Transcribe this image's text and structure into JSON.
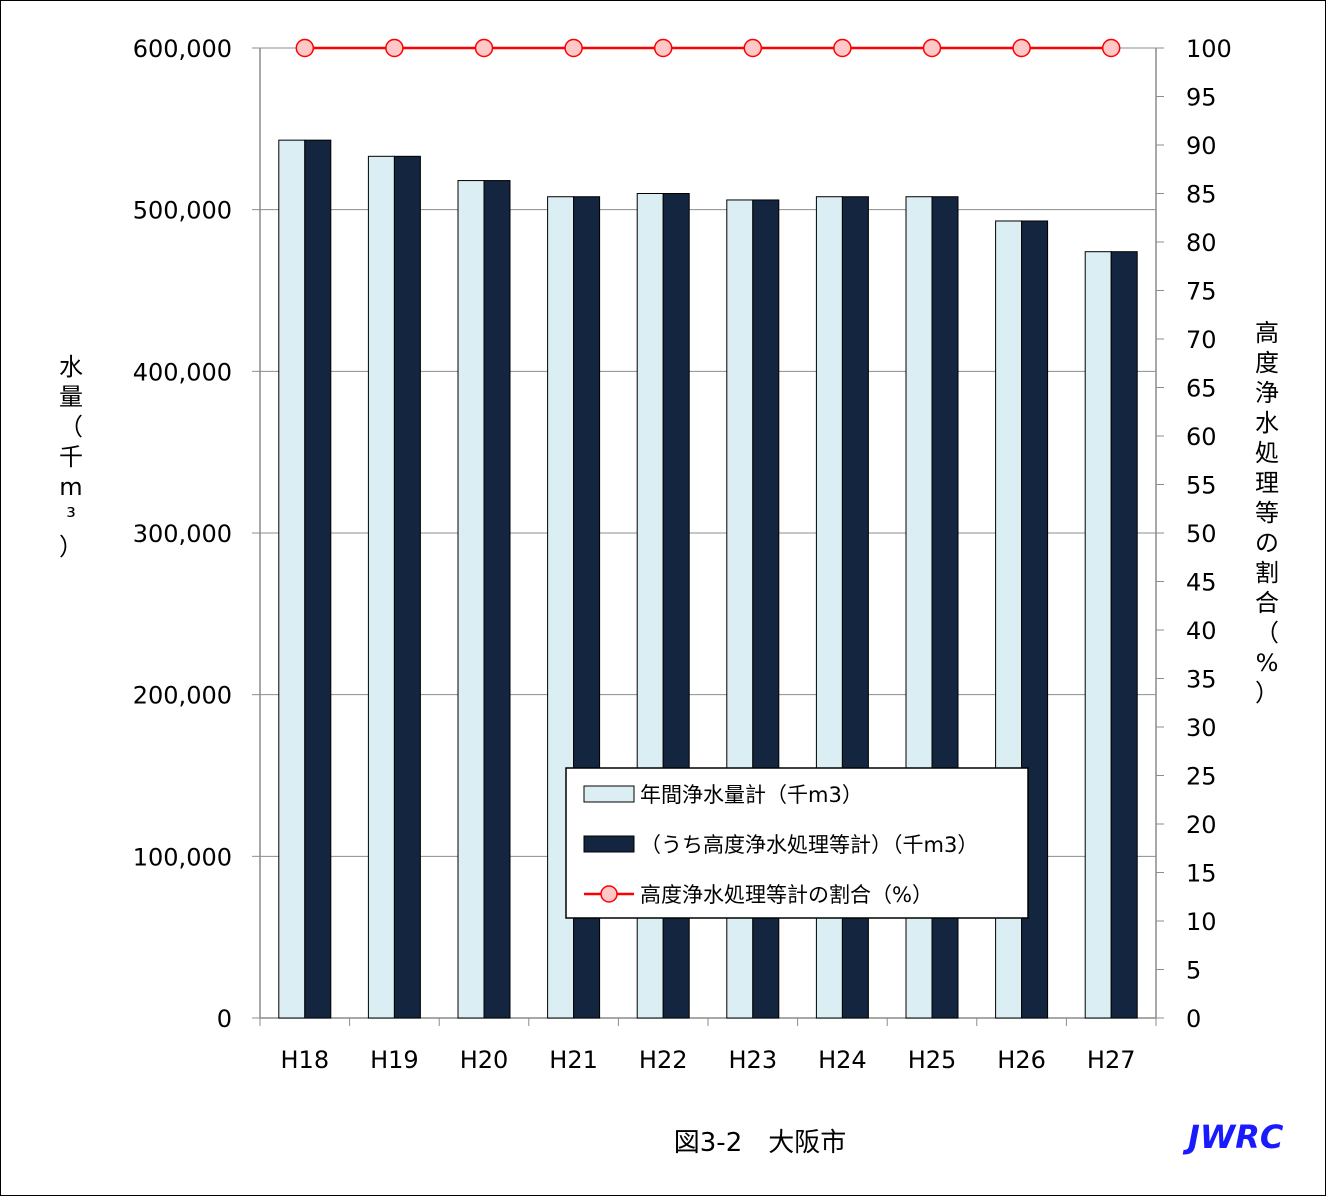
{
  "chart_data": {
    "type": "bar",
    "categories": [
      "H18",
      "H19",
      "H20",
      "H21",
      "H22",
      "H23",
      "H24",
      "H25",
      "H26",
      "H27"
    ],
    "series": [
      {
        "name": "年間浄水量計（千m3）",
        "type": "bar",
        "axis": "left",
        "color": "#dbeef3",
        "values": [
          543000,
          533000,
          518000,
          508000,
          510000,
          506000,
          508000,
          508000,
          493000,
          474000
        ]
      },
      {
        "name": "（うち高度浄水処理等計）（千m3）",
        "type": "bar",
        "axis": "left",
        "color": "#13253f",
        "values": [
          543000,
          533000,
          518000,
          508000,
          510000,
          506000,
          508000,
          508000,
          493000,
          474000
        ]
      },
      {
        "name": "高度浄水処理等計の割合（%）",
        "type": "line",
        "axis": "right",
        "color": "#ff0000",
        "marker_fill": "#ffc8c8",
        "values": [
          100,
          100,
          100,
          100,
          100,
          100,
          100,
          100,
          100,
          100
        ]
      }
    ],
    "ylabel": "水量（千m³）",
    "y2label": "高度浄水処理等の割合（%）",
    "ylim": [
      0,
      600000
    ],
    "y2lim": [
      0,
      100
    ],
    "yticks": [
      "0",
      "100,000",
      "200,000",
      "300,000",
      "400,000",
      "500,000",
      "600,000"
    ],
    "y2ticks": [
      "0",
      "5",
      "10",
      "15",
      "20",
      "25",
      "30",
      "35",
      "40",
      "45",
      "50",
      "55",
      "60",
      "65",
      "70",
      "75",
      "80",
      "85",
      "90",
      "95",
      "100"
    ],
    "grid": true,
    "legend_position": "lower-right-inside"
  },
  "caption": "図3-2　大阪市",
  "brand": "JWRC"
}
